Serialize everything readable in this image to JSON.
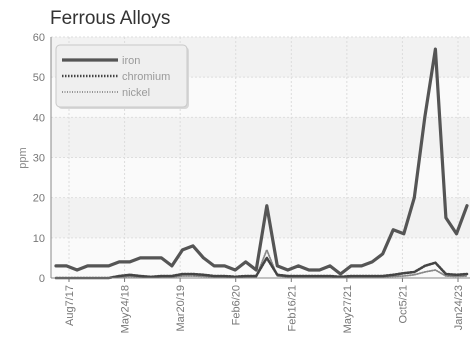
{
  "chart_data": {
    "type": "line",
    "title": "Ferrous Alloys",
    "xlabel": "",
    "ylabel": "ppm",
    "ylim": [
      0,
      60
    ],
    "yticks": [
      0,
      10,
      20,
      30,
      40,
      50,
      60
    ],
    "x_tick_labels": [
      "Aug7/17",
      "May24/18",
      "Mar20/19",
      "Feb6/20",
      "Feb16/21",
      "May27/21",
      "Oct5/21",
      "Jan24/23"
    ],
    "grid": true,
    "legend_position": "top-left",
    "series": [
      {
        "name": "iron",
        "color": "#555555",
        "style": "solid",
        "values": [
          3,
          3,
          2,
          3,
          3,
          3,
          4,
          4,
          5,
          5,
          5,
          3,
          7,
          8,
          5,
          3,
          3,
          2,
          4,
          2,
          18,
          3,
          2,
          3,
          2,
          2,
          3,
          1,
          3,
          3,
          4,
          6,
          12,
          11,
          20,
          40,
          57,
          15,
          11,
          18
        ]
      },
      {
        "name": "chromium",
        "color": "#444444",
        "style": "dotted",
        "values": [
          0,
          0,
          0,
          0,
          0,
          0,
          0.5,
          0.8,
          0.5,
          0.3,
          0.5,
          0.5,
          1,
          1,
          0.8,
          0.5,
          0.5,
          0.3,
          0.5,
          0.5,
          5,
          0.8,
          0.5,
          0.5,
          0.5,
          0.5,
          0.5,
          0.3,
          0.5,
          0.5,
          0.5,
          0.5,
          0.8,
          1.2,
          1.5,
          3,
          3.8,
          1,
          0.8,
          1
        ]
      },
      {
        "name": "nickel",
        "color": "#888888",
        "style": "dotted-thin",
        "values": [
          0,
          0,
          0,
          0,
          0,
          0,
          0.3,
          0.4,
          0.3,
          0.2,
          0.3,
          0.3,
          0.5,
          0.5,
          0.4,
          0.3,
          0.3,
          0.2,
          0.3,
          0.3,
          7,
          0.5,
          0.3,
          0.3,
          0.3,
          0.3,
          0.3,
          0.2,
          0.3,
          0.3,
          0.3,
          0.3,
          0.4,
          0.5,
          0.8,
          1.5,
          2,
          0.5,
          0.4,
          0.5
        ]
      }
    ]
  }
}
